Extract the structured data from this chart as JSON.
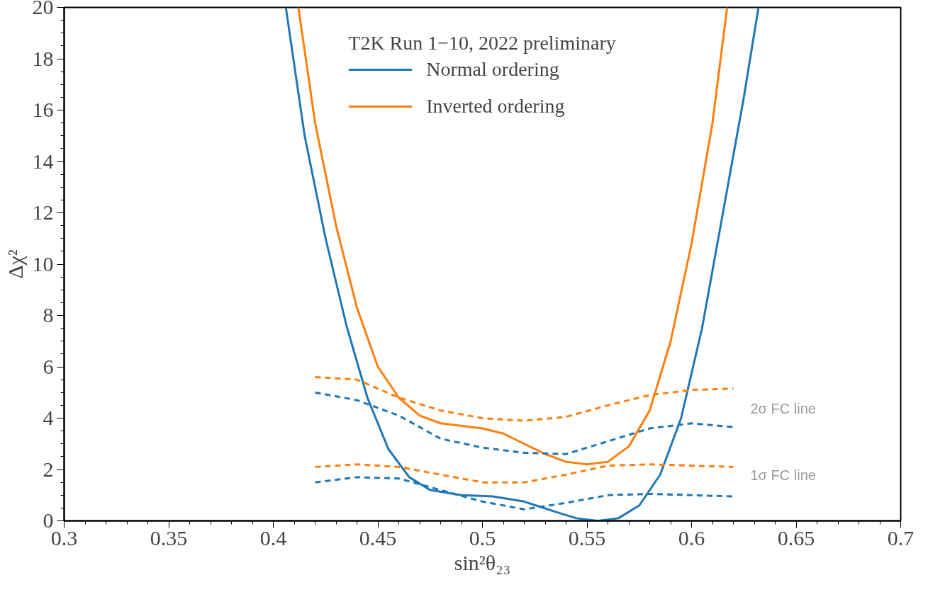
{
  "chart_data": {
    "type": "line",
    "xlabel": "sin²θ₂₃",
    "ylabel": "Δχ²",
    "legend_title": "T2K Run 1−10, 2022 preliminary",
    "legend": "top",
    "grid": false,
    "line_style": "solid",
    "marker": "none",
    "xlim": [
      0.3,
      0.7
    ],
    "ylim": [
      0,
      20
    ],
    "xticks": [
      0.3,
      0.35,
      0.4,
      0.45,
      0.5,
      0.55,
      0.6,
      0.65,
      0.7
    ],
    "yticks": [
      0,
      2,
      4,
      6,
      8,
      10,
      12,
      14,
      16,
      18,
      20
    ],
    "series": [
      {
        "name": "Normal ordering",
        "color": "#1f77b4",
        "x": [
          0.406,
          0.415,
          0.425,
          0.435,
          0.445,
          0.455,
          0.465,
          0.475,
          0.49,
          0.505,
          0.52,
          0.535,
          0.545,
          0.555,
          0.565,
          0.575,
          0.585,
          0.595,
          0.605,
          0.615,
          0.625,
          0.632
        ],
        "values": [
          20,
          15,
          11,
          7.6,
          4.8,
          2.8,
          1.7,
          1.2,
          1.0,
          0.95,
          0.75,
          0.35,
          0.1,
          0.0,
          0.1,
          0.6,
          1.8,
          4.0,
          7.5,
          12,
          16.5,
          20
        ]
      },
      {
        "name": "Inverted ordering",
        "color": "#ff7f0e",
        "x": [
          0.412,
          0.42,
          0.43,
          0.44,
          0.45,
          0.46,
          0.47,
          0.48,
          0.5,
          0.51,
          0.52,
          0.53,
          0.54,
          0.55,
          0.56,
          0.57,
          0.58,
          0.59,
          0.6,
          0.61,
          0.617
        ],
        "values": [
          20,
          15.5,
          11.5,
          8.3,
          6.0,
          4.8,
          4.1,
          3.8,
          3.6,
          3.4,
          3.0,
          2.6,
          2.3,
          2.2,
          2.3,
          2.9,
          4.3,
          7.0,
          10.8,
          15.5,
          20
        ]
      },
      {
        "color": "#ff7f0e",
        "line_style": "dashed",
        "x": [
          0.42,
          0.44,
          0.46,
          0.48,
          0.5,
          0.52,
          0.54,
          0.56,
          0.58,
          0.6,
          0.62
        ],
        "values": [
          5.6,
          5.5,
          4.8,
          4.3,
          4.0,
          3.9,
          4.05,
          4.5,
          4.9,
          5.1,
          5.15
        ]
      },
      {
        "color": "#1f77b4",
        "line_style": "dashed",
        "x": [
          0.42,
          0.44,
          0.46,
          0.48,
          0.5,
          0.52,
          0.54,
          0.56,
          0.58,
          0.6,
          0.62
        ],
        "values": [
          5.0,
          4.7,
          4.1,
          3.2,
          2.85,
          2.65,
          2.6,
          3.1,
          3.6,
          3.8,
          3.65
        ]
      },
      {
        "color": "#ff7f0e",
        "line_style": "dashed",
        "x": [
          0.42,
          0.44,
          0.46,
          0.48,
          0.5,
          0.52,
          0.54,
          0.56,
          0.58,
          0.6,
          0.62
        ],
        "values": [
          2.1,
          2.2,
          2.1,
          1.8,
          1.5,
          1.5,
          1.8,
          2.15,
          2.2,
          2.15,
          2.1
        ]
      },
      {
        "color": "#1f77b4",
        "line_style": "dashed",
        "x": [
          0.42,
          0.44,
          0.46,
          0.48,
          0.5,
          0.52,
          0.54,
          0.56,
          0.58,
          0.6,
          0.62
        ],
        "values": [
          1.5,
          1.7,
          1.65,
          1.2,
          0.75,
          0.45,
          0.7,
          1.0,
          1.05,
          1.0,
          0.95
        ]
      }
    ],
    "annotations": [
      "2σ FC line",
      "1σ FC line"
    ]
  }
}
